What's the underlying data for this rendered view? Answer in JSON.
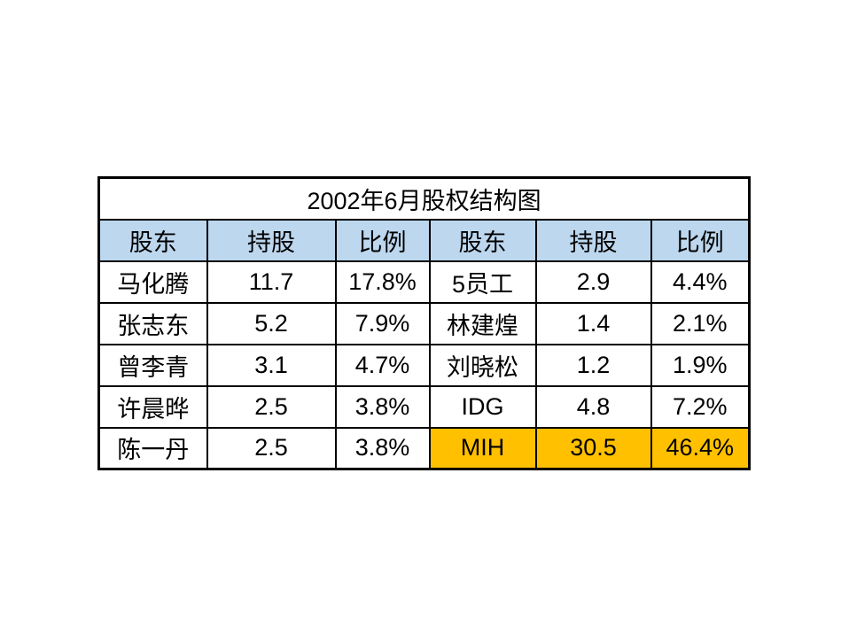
{
  "page": {
    "background_color": "#ffffff"
  },
  "table": {
    "title": "2002年6月股权结构图",
    "headers": [
      "股东",
      "持股",
      "比例",
      "股东",
      "持股",
      "比例"
    ],
    "rows": [
      {
        "cells": [
          "马化腾",
          "11.7",
          "17.8%",
          "5员工",
          "2.9",
          "4.4%"
        ]
      },
      {
        "cells": [
          "张志东",
          "5.2",
          "7.9%",
          "林建煌",
          "1.4",
          "2.1%"
        ]
      },
      {
        "cells": [
          "曾李青",
          "3.1",
          "4.7%",
          "刘晓松",
          "1.2",
          "1.9%"
        ]
      },
      {
        "cells": [
          "许晨晔",
          "2.5",
          "3.8%",
          "IDG",
          "4.8",
          "7.2%"
        ]
      },
      {
        "cells": [
          "陈一丹",
          "2.5",
          "3.8%",
          "MIH",
          "30.5",
          "46.4%"
        ]
      }
    ],
    "colors": {
      "header_bg": "#BDD7EE",
      "highlight_bg": "#FFC000",
      "border": "#000000",
      "text": "#000000"
    },
    "highlighted_cells": [
      "MIH",
      "30.5",
      "46.4%"
    ]
  },
  "chart_data": {
    "type": "table",
    "title": "2002年6月股权结构图",
    "columns": [
      "股东",
      "持股",
      "比例",
      "股东",
      "持股",
      "比例"
    ],
    "rows": [
      [
        "马化腾",
        "11.7",
        "17.8%",
        "5员工",
        "2.9",
        "4.4%"
      ],
      [
        "张志东",
        "5.2",
        "7.9%",
        "林建煌",
        "1.4",
        "2.1%"
      ],
      [
        "曾李青",
        "3.1",
        "4.7%",
        "刘晓松",
        "1.2",
        "1.9%"
      ],
      [
        "许晨晔",
        "2.5",
        "3.8%",
        "IDG",
        "4.8",
        "7.2%"
      ],
      [
        "陈一丹",
        "2.5",
        "3.8%",
        "MIH",
        "30.5",
        "46.4%"
      ]
    ],
    "shareholders": [
      {
        "name": "马化腾",
        "shares": 11.7,
        "percent": 17.8
      },
      {
        "name": "张志东",
        "shares": 5.2,
        "percent": 7.9
      },
      {
        "name": "曾李青",
        "shares": 3.1,
        "percent": 4.7
      },
      {
        "name": "许晨晔",
        "shares": 2.5,
        "percent": 3.8
      },
      {
        "name": "陈一丹",
        "shares": 2.5,
        "percent": 3.8
      },
      {
        "name": "5员工",
        "shares": 2.9,
        "percent": 4.4
      },
      {
        "name": "林建煌",
        "shares": 1.4,
        "percent": 2.1
      },
      {
        "name": "刘晓松",
        "shares": 1.2,
        "percent": 1.9
      },
      {
        "name": "IDG",
        "shares": 4.8,
        "percent": 7.2
      },
      {
        "name": "MIH",
        "shares": 30.5,
        "percent": 46.4
      }
    ],
    "highlighted": [
      "MIH"
    ]
  }
}
